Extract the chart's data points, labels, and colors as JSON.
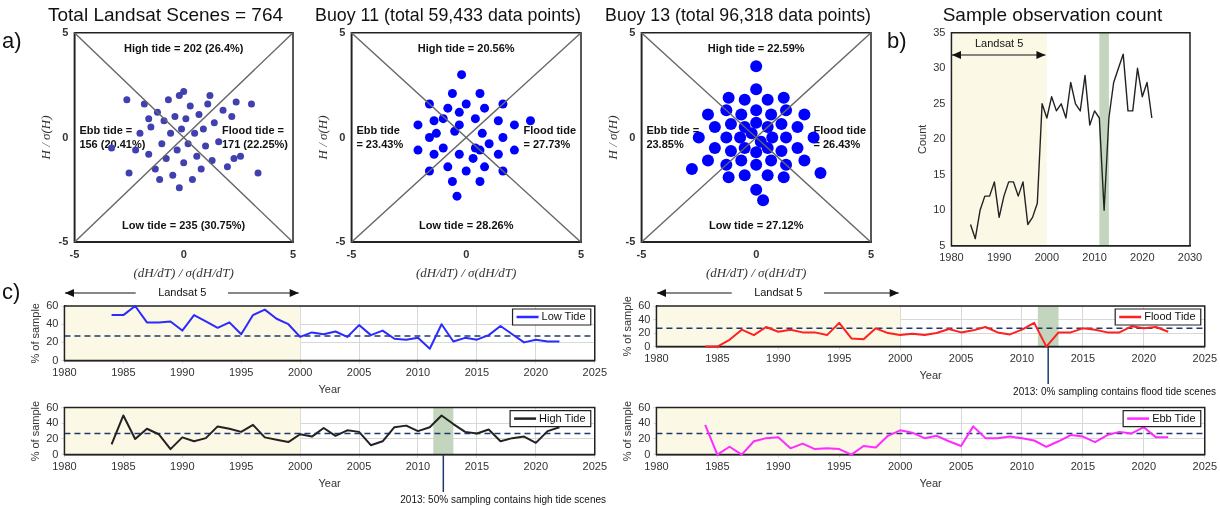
{
  "chart_data": [
    {
      "type": "scatter",
      "title": "Total Landsat Scenes = 764",
      "xlabel": "(dH/dT) / σ(dH/dT)",
      "ylabel": "H / σ(H)",
      "xlim": [
        -5,
        5
      ],
      "ylim": [
        -5,
        5
      ],
      "xticks": [
        -5,
        0,
        5
      ],
      "yticks": [
        -5,
        0,
        5
      ],
      "grid": false,
      "series": [
        {
          "type": "line",
          "color": "#666666",
          "x": [
            -5,
            5
          ],
          "values": [
            -5,
            5
          ]
        },
        {
          "type": "line",
          "color": "#666666",
          "x": [
            -5,
            5
          ],
          "values": [
            5,
            -5
          ]
        },
        {
          "marker": "circle",
          "color": "#4040b0",
          "x": [
            -3.3,
            -2.6,
            -2.5,
            -2.0,
            -1.8,
            -1.6,
            -1.5,
            -1.3,
            -1.2,
            -1.0,
            -0.9,
            -0.8,
            -0.7,
            -0.6,
            -0.5,
            -0.4,
            -0.3,
            -0.2,
            -0.1,
            0,
            0.1,
            0.2,
            0.3,
            0.4,
            0.5,
            0.6,
            0.7,
            0.8,
            0.9,
            1.0,
            1.1,
            1.3,
            1.4,
            1.6,
            1.8,
            2.0,
            2.2,
            2.4,
            2.6,
            3.1,
            3.4,
            -1.1,
            0.0,
            -2.2,
            1.2,
            -0.2,
            2.3,
            -1.6
          ],
          "values": [
            -0.5,
            1.8,
            -1.7,
            0.2,
            1.6,
            -0.8,
            0.5,
            -1.5,
            1.2,
            -0.3,
            0.8,
            -1.0,
            1.8,
            0.2,
            -1.8,
            1.0,
            -0.6,
            2.0,
            0.4,
            -1.2,
            0.9,
            -0.3,
            1.5,
            -2.0,
            0.2,
            -0.9,
            1.1,
            -1.5,
            0.4,
            -0.4,
            1.6,
            -1.1,
            0.7,
            -0.2,
            1.3,
            -1.4,
            1.0,
            1.7,
            -0.9,
            1.6,
            -1.7,
            -2.0,
            2.2,
            -0.6,
            2.0,
            -2.4,
            -1.0,
            0.9
          ]
        }
      ],
      "annotations": [
        "a)",
        "High tide = 202 (26.4%)",
        "Low tide = 235 (30.75%)",
        "Ebb tide =\n156 (20.41%)",
        "Flood tide =\n171 (22.25%)"
      ]
    },
    {
      "type": "scatter",
      "title": "Buoy 11 (total 59,433 data points)",
      "xlabel": "(dH/dT) / σ(dH/dT)",
      "ylabel": "H / σ(H)",
      "xlim": [
        -5,
        5
      ],
      "ylim": [
        -5,
        5
      ],
      "xticks": [
        -5,
        0,
        5
      ],
      "yticks": [
        -5,
        0,
        5
      ],
      "grid": false,
      "series": [
        {
          "type": "line",
          "color": "#666666",
          "x": [
            -5,
            5
          ],
          "values": [
            -5,
            5
          ]
        },
        {
          "type": "line",
          "color": "#666666",
          "x": [
            -5,
            5
          ],
          "values": [
            5,
            -5
          ]
        },
        {
          "marker": "circle",
          "color": "#0000ff",
          "x": [
            0.7,
            0.4,
            -0.3,
            -1.0,
            -1.3,
            -1.0,
            -0.3,
            0.4,
            1.6,
            1.4,
            0.8,
            0,
            -0.8,
            -1.4,
            -1.6,
            -1.4,
            -0.8,
            0,
            0.8,
            1.4,
            2.1,
            1.6,
            0.6,
            -0.6,
            -1.6,
            -2.1,
            -2.1,
            -1.6,
            -0.6,
            0.6,
            1.6,
            2.1,
            0.6,
            1.0,
            0.3,
            -0.2,
            2.8,
            -0.4,
            -0.5,
            -0.3
          ],
          "values": [
            0.2,
            0.9,
            1.2,
            0.9,
            0.2,
            -0.5,
            -0.8,
            -0.5,
            0,
            0.8,
            1.4,
            1.6,
            1.4,
            0.8,
            0,
            -0.8,
            -1.4,
            -1.6,
            -1.4,
            -0.8,
            0.6,
            1.6,
            2.1,
            2.1,
            1.6,
            0.6,
            -0.6,
            -1.6,
            -2.1,
            -2.1,
            -1.6,
            -0.6,
            -0.6,
            -0.3,
            -1.0,
            3.0,
            0.8,
            -2.8,
            0.3,
            0.6
          ]
        }
      ],
      "annotations": [
        "High tide = 20.56%",
        "Low tide = 28.26%",
        "Ebb tide\n= 23.43%",
        "Flood tide\n= 27.73%"
      ]
    },
    {
      "type": "scatter",
      "title": "Buoy 13 (total 96,318 data points)",
      "xlabel": "(dH/dT) / σ(dH/dT)",
      "ylabel": "H / σ(H)",
      "xlim": [
        -5,
        5
      ],
      "ylim": [
        -5,
        5
      ],
      "xticks": [
        -5,
        0,
        5
      ],
      "yticks": [
        -5,
        0,
        5
      ],
      "grid": false,
      "series": [
        {
          "type": "line",
          "color": "#666666",
          "x": [
            -5,
            5
          ],
          "values": [
            -5,
            5
          ]
        },
        {
          "type": "line",
          "color": "#666666",
          "x": [
            -5,
            5
          ],
          "values": [
            5,
            -5
          ]
        },
        {
          "marker": "circle",
          "color": "#0000ff",
          "x": [
            0.7,
            0.5,
            0,
            -0.5,
            -0.7,
            -0.5,
            0,
            0.5,
            1.3,
            1.1,
            0.65,
            0,
            -0.65,
            -1.1,
            -1.3,
            -1.1,
            -0.65,
            0,
            0.65,
            1.1,
            1.8,
            1.3,
            0.5,
            -0.5,
            -1.3,
            -1.8,
            -1.8,
            -1.3,
            -0.5,
            0.5,
            1.3,
            1.8,
            2.5,
            2.1,
            1.2,
            0,
            -1.2,
            -2.1,
            -2.5,
            -2.1,
            -1.2,
            0,
            1.2,
            2.1,
            0,
            -2.8,
            2.8,
            0.3,
            0.2,
            -0.2
          ],
          "values": [
            0,
            0.5,
            0.7,
            0.5,
            0,
            -0.5,
            -0.7,
            -0.5,
            0,
            0.65,
            1.1,
            1.3,
            1.1,
            0.65,
            0,
            -0.65,
            -1.1,
            -1.3,
            -1.1,
            -0.65,
            0.5,
            1.3,
            1.8,
            1.8,
            1.3,
            0.5,
            -0.5,
            -1.3,
            -1.8,
            -1.8,
            -1.3,
            -0.5,
            0,
            1.1,
            1.9,
            2.3,
            1.9,
            1.1,
            0,
            -1.1,
            -1.9,
            -2.5,
            -1.9,
            -1.1,
            3.4,
            -1.5,
            -1.7,
            -3.0,
            -0.2,
            0.2
          ]
        }
      ],
      "annotations": [
        "High tide = 22.59%",
        "Low tide = 27.12%",
        "Ebb tide =\n23.85%",
        "Flood tide\n= 26.43%"
      ]
    },
    {
      "type": "line",
      "title": "Sample observation count",
      "ylabel": "Count",
      "xlim": [
        1980,
        2030
      ],
      "ylim": [
        5,
        35
      ],
      "xticks": [
        1980,
        1990,
        2000,
        2010,
        2020,
        2030
      ],
      "yticks": [
        5,
        10,
        15,
        20,
        25,
        30,
        35
      ],
      "grid": false,
      "x": [
        1984,
        1985,
        1986,
        1987,
        1988,
        1989,
        1990,
        1991,
        1992,
        1993,
        1994,
        1995,
        1996,
        1997,
        1998,
        1999,
        2000,
        2001,
        2002,
        2003,
        2004,
        2005,
        2006,
        2007,
        2008,
        2009,
        2010,
        2011,
        2012,
        2013,
        2014,
        2015,
        2016,
        2017,
        2018,
        2019,
        2020,
        2021,
        2022
      ],
      "series": [
        {
          "color": "#222222",
          "values": [
            8,
            6,
            10,
            12,
            12,
            14,
            9,
            12,
            14,
            14,
            12,
            14,
            8,
            9,
            11,
            25,
            23,
            26,
            24,
            25,
            23,
            28,
            25,
            24,
            29,
            22,
            24,
            23,
            10,
            23,
            28,
            30,
            32,
            24,
            24,
            30,
            26,
            28,
            23
          ]
        }
      ],
      "bands": [
        {
          "axis": "x",
          "from": 1980,
          "to": 2000,
          "label": "Landsat 5",
          "color": "#fcf8e6"
        },
        {
          "axis": "x",
          "from": 2011,
          "to": 2013,
          "color": "#c3d6bd"
        }
      ],
      "annotations": [
        "b)"
      ]
    },
    {
      "type": "line",
      "xlabel": "Year",
      "ylabel": "% of sample",
      "xlim": [
        1980,
        2025
      ],
      "ylim": [
        0,
        60
      ],
      "xticks": [
        1980,
        1985,
        1990,
        1995,
        2000,
        2005,
        2010,
        2015,
        2020,
        2025
      ],
      "yticks": [
        0,
        20,
        40,
        60
      ],
      "grid": true,
      "legend": "top right",
      "x": [
        1984,
        1985,
        1986,
        1987,
        1988,
        1989,
        1990,
        1991,
        1992,
        1993,
        1994,
        1995,
        1996,
        1997,
        1998,
        1999,
        2000,
        2001,
        2002,
        2003,
        2004,
        2005,
        2006,
        2007,
        2008,
        2009,
        2010,
        2011,
        2012,
        2013,
        2014,
        2015,
        2016,
        2017,
        2018,
        2019,
        2020,
        2021,
        2022
      ],
      "series": [
        {
          "name": "Low Tide",
          "color": "#2b2bff",
          "values": [
            50,
            50,
            60,
            42,
            42,
            43,
            33,
            50,
            43,
            36,
            42,
            29,
            50,
            56,
            46,
            40,
            26,
            31,
            29,
            32,
            26,
            39,
            28,
            33,
            24,
            23,
            25,
            13,
            40,
            21,
            25,
            23,
            28,
            38,
            29,
            20,
            23,
            21,
            21
          ]
        }
      ],
      "bands": [
        {
          "axis": "x",
          "from": 1980,
          "to": 2000,
          "label": "Landsat 5",
          "color": "#fcf8e6"
        }
      ],
      "ref_lines": [
        {
          "axis": "y",
          "value": 27,
          "color": "#1f3a6e",
          "line_style": "dashed"
        }
      ],
      "annotations": [
        "c)"
      ]
    },
    {
      "type": "line",
      "xlabel": "Year",
      "ylabel": "% of sample",
      "xlim": [
        1980,
        2025
      ],
      "ylim": [
        0,
        60
      ],
      "xticks": [
        1980,
        1985,
        1990,
        1995,
        2000,
        2005,
        2010,
        2015,
        2020,
        2025
      ],
      "yticks": [
        0,
        20,
        40,
        60
      ],
      "grid": true,
      "legend": "top right",
      "x": [
        1984,
        1985,
        1986,
        1987,
        1988,
        1989,
        1990,
        1991,
        1992,
        1993,
        1994,
        1995,
        1996,
        1997,
        1998,
        1999,
        2000,
        2001,
        2002,
        2003,
        2004,
        2005,
        2006,
        2007,
        2008,
        2009,
        2010,
        2011,
        2012,
        2013,
        2014,
        2015,
        2016,
        2017,
        2018,
        2019,
        2020,
        2021,
        2022
      ],
      "series": [
        {
          "name": "Flood Tide",
          "color": "#ff2020",
          "values": [
            0,
            0,
            10,
            25,
            17,
            29,
            22,
            25,
            21,
            21,
            17,
            35,
            12,
            11,
            27,
            20,
            17,
            19,
            17,
            20,
            26,
            21,
            24,
            29,
            21,
            18,
            25,
            35,
            0,
            21,
            21,
            27,
            25,
            21,
            21,
            30,
            27,
            29,
            22
          ]
        }
      ],
      "bands": [
        {
          "axis": "x",
          "from": 1980,
          "to": 2000,
          "label": "Landsat 5",
          "color": "#fcf8e6"
        },
        {
          "axis": "x",
          "from": 2011.3,
          "to": 2013,
          "color": "#c3d6bd"
        }
      ],
      "ref_lines": [
        {
          "axis": "y",
          "value": 27,
          "color": "#1f3a6e",
          "line_style": "dashed"
        }
      ],
      "annotations": [
        "2013: 0% sampling contains flood tide scenes"
      ]
    },
    {
      "type": "line",
      "xlabel": "Year",
      "ylabel": "% of sample",
      "xlim": [
        1980,
        2025
      ],
      "ylim": [
        0,
        60
      ],
      "xticks": [
        1980,
        1985,
        1990,
        1995,
        2000,
        2005,
        2010,
        2015,
        2020,
        2025
      ],
      "yticks": [
        0,
        20,
        40,
        60
      ],
      "grid": true,
      "legend": "top right",
      "x": [
        1984,
        1985,
        1986,
        1987,
        1988,
        1989,
        1990,
        1991,
        1992,
        1993,
        1994,
        1995,
        1996,
        1997,
        1998,
        1999,
        2000,
        2001,
        2002,
        2003,
        2004,
        2005,
        2006,
        2007,
        2008,
        2009,
        2010,
        2011,
        2012,
        2013,
        2014,
        2015,
        2016,
        2017,
        2018,
        2019,
        2020,
        2021,
        2022
      ],
      "series": [
        {
          "name": "High Tide",
          "color": "#222222",
          "values": [
            13,
            50,
            20,
            33,
            26,
            7,
            22,
            17,
            21,
            36,
            33,
            29,
            38,
            22,
            19,
            16,
            26,
            23,
            34,
            24,
            31,
            29,
            12,
            17,
            35,
            37,
            30,
            35,
            50,
            39,
            29,
            27,
            32,
            17,
            21,
            23,
            15,
            30,
            35
          ]
        }
      ],
      "bands": [
        {
          "axis": "x",
          "from": 1980,
          "to": 2000,
          "color": "#fcf8e6"
        },
        {
          "axis": "x",
          "from": 2011.3,
          "to": 2013,
          "color": "#c3d6bd"
        }
      ],
      "ref_lines": [
        {
          "axis": "y",
          "value": 27,
          "color": "#1f3a6e",
          "line_style": "dashed"
        }
      ],
      "annotations": [
        "2013: 50% sampling contains high tide scenes"
      ]
    },
    {
      "type": "line",
      "xlabel": "Year",
      "ylabel": "% of sample",
      "xlim": [
        1980,
        2025
      ],
      "ylim": [
        0,
        60
      ],
      "xticks": [
        1980,
        1985,
        1990,
        1995,
        2000,
        2005,
        2010,
        2015,
        2020,
        2025
      ],
      "yticks": [
        0,
        20,
        40,
        60
      ],
      "grid": true,
      "legend": "top right",
      "x": [
        1984,
        1985,
        1986,
        1987,
        1988,
        1989,
        1990,
        1991,
        1992,
        1993,
        1994,
        1995,
        1996,
        1997,
        1998,
        1999,
        2000,
        2001,
        2002,
        2003,
        2004,
        2005,
        2006,
        2007,
        2008,
        2009,
        2010,
        2011,
        2012,
        2013,
        2014,
        2015,
        2016,
        2017,
        2018,
        2019,
        2020,
        2021,
        2022
      ],
      "series": [
        {
          "name": "Ebb Tide",
          "color": "#ff2bff",
          "values": [
            38,
            0,
            10,
            0,
            17,
            21,
            22,
            8,
            14,
            7,
            8,
            7,
            0,
            11,
            9,
            24,
            31,
            28,
            21,
            24,
            17,
            11,
            36,
            21,
            21,
            23,
            21,
            18,
            10,
            17,
            25,
            23,
            16,
            25,
            29,
            27,
            35,
            22,
            22
          ]
        }
      ],
      "bands": [
        {
          "axis": "x",
          "from": 1980,
          "to": 2000,
          "color": "#fcf8e6"
        }
      ],
      "ref_lines": [
        {
          "axis": "y",
          "value": 27,
          "color": "#1f3a6e",
          "line_style": "dashed"
        }
      ]
    }
  ]
}
